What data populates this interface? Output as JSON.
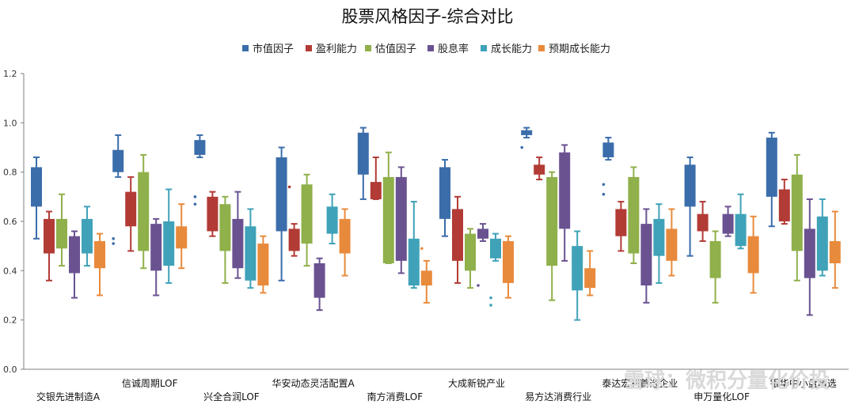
{
  "chart_data": {
    "type": "boxplot",
    "title": "股票风格因子-综合对比",
    "ylim": [
      0.0,
      1.2
    ],
    "yticks": [
      "0.0",
      "0.2",
      "0.4",
      "0.6",
      "0.8",
      "1.0",
      "1.2"
    ],
    "legend_position": "top-center",
    "grid": false,
    "categories": [
      "交银先进制造A",
      "信诚周期LOF",
      "兴全合润LOF",
      "华安动态灵活配置A",
      "南方消费LOF",
      "大成新锐产业",
      "易方达消费行业",
      "泰达宏利首选企业",
      "申万量化LOF",
      "银华中小盘精选"
    ],
    "series": [
      {
        "name": "市值因子",
        "color": "#3b6dab",
        "stats": [
          {
            "min": 0.53,
            "q1": 0.66,
            "q3": 0.82,
            "max": 0.86,
            "outliers": []
          },
          {
            "min": 0.78,
            "q1": 0.8,
            "q3": 0.89,
            "max": 0.95,
            "outliers": [
              0.51,
              0.53
            ]
          },
          {
            "min": 0.86,
            "q1": 0.87,
            "q3": 0.93,
            "max": 0.95,
            "outliers": [
              0.67,
              0.7
            ]
          },
          {
            "min": 0.36,
            "q1": 0.56,
            "q3": 0.86,
            "max": 0.9,
            "outliers": []
          },
          {
            "min": 0.69,
            "q1": 0.79,
            "q3": 0.96,
            "max": 0.98,
            "outliers": []
          },
          {
            "min": 0.54,
            "q1": 0.61,
            "q3": 0.82,
            "max": 0.85,
            "outliers": []
          },
          {
            "min": 0.94,
            "q1": 0.95,
            "q3": 0.97,
            "max": 0.98,
            "outliers": [
              0.9
            ]
          },
          {
            "min": 0.85,
            "q1": 0.86,
            "q3": 0.92,
            "max": 0.94,
            "outliers": [
              0.71,
              0.75
            ]
          },
          {
            "min": 0.46,
            "q1": 0.66,
            "q3": 0.83,
            "max": 0.86,
            "outliers": []
          },
          {
            "min": 0.58,
            "q1": 0.7,
            "q3": 0.94,
            "max": 0.96,
            "outliers": []
          }
        ]
      },
      {
        "name": "盈利能力",
        "color": "#b23b35",
        "stats": [
          {
            "min": 0.36,
            "q1": 0.47,
            "q3": 0.61,
            "max": 0.64,
            "outliers": []
          },
          {
            "min": 0.48,
            "q1": 0.58,
            "q3": 0.72,
            "max": 0.78,
            "outliers": []
          },
          {
            "min": 0.54,
            "q1": 0.56,
            "q3": 0.7,
            "max": 0.72,
            "outliers": []
          },
          {
            "min": 0.46,
            "q1": 0.48,
            "q3": 0.57,
            "max": 0.59,
            "outliers": [
              0.74
            ]
          },
          {
            "min": 0.69,
            "q1": 0.69,
            "q3": 0.76,
            "max": 0.86,
            "outliers": []
          },
          {
            "min": 0.35,
            "q1": 0.44,
            "q3": 0.65,
            "max": 0.7,
            "outliers": []
          },
          {
            "min": 0.77,
            "q1": 0.79,
            "q3": 0.83,
            "max": 0.86,
            "outliers": []
          },
          {
            "min": 0.48,
            "q1": 0.54,
            "q3": 0.65,
            "max": 0.68,
            "outliers": []
          },
          {
            "min": 0.52,
            "q1": 0.56,
            "q3": 0.63,
            "max": 0.68,
            "outliers": []
          },
          {
            "min": 0.59,
            "q1": 0.6,
            "q3": 0.73,
            "max": 0.77,
            "outliers": []
          }
        ]
      },
      {
        "name": "估值因子",
        "color": "#8fb04a",
        "stats": [
          {
            "min": 0.42,
            "q1": 0.49,
            "q3": 0.61,
            "max": 0.71,
            "outliers": []
          },
          {
            "min": 0.41,
            "q1": 0.48,
            "q3": 0.8,
            "max": 0.87,
            "outliers": []
          },
          {
            "min": 0.35,
            "q1": 0.48,
            "q3": 0.67,
            "max": 0.7,
            "outliers": []
          },
          {
            "min": 0.42,
            "q1": 0.51,
            "q3": 0.75,
            "max": 0.79,
            "outliers": []
          },
          {
            "min": 0.43,
            "q1": 0.43,
            "q3": 0.78,
            "max": 0.88,
            "outliers": []
          },
          {
            "min": 0.33,
            "q1": 0.4,
            "q3": 0.55,
            "max": 0.57,
            "outliers": []
          },
          {
            "min": 0.28,
            "q1": 0.42,
            "q3": 0.78,
            "max": 0.8,
            "outliers": []
          },
          {
            "min": 0.43,
            "q1": 0.47,
            "q3": 0.78,
            "max": 0.82,
            "outliers": []
          },
          {
            "min": 0.27,
            "q1": 0.37,
            "q3": 0.52,
            "max": 0.56,
            "outliers": []
          },
          {
            "min": 0.36,
            "q1": 0.48,
            "q3": 0.79,
            "max": 0.87,
            "outliers": []
          }
        ]
      },
      {
        "name": "股息率",
        "color": "#6a5291",
        "stats": [
          {
            "min": 0.29,
            "q1": 0.39,
            "q3": 0.54,
            "max": 0.56,
            "outliers": []
          },
          {
            "min": 0.3,
            "q1": 0.4,
            "q3": 0.59,
            "max": 0.61,
            "outliers": []
          },
          {
            "min": 0.37,
            "q1": 0.41,
            "q3": 0.61,
            "max": 0.72,
            "outliers": []
          },
          {
            "min": 0.24,
            "q1": 0.29,
            "q3": 0.43,
            "max": 0.45,
            "outliers": []
          },
          {
            "min": 0.39,
            "q1": 0.44,
            "q3": 0.78,
            "max": 0.82,
            "outliers": []
          },
          {
            "min": 0.52,
            "q1": 0.53,
            "q3": 0.57,
            "max": 0.59,
            "outliers": [
              0.34
            ]
          },
          {
            "min": 0.44,
            "q1": 0.57,
            "q3": 0.88,
            "max": 0.91,
            "outliers": []
          },
          {
            "min": 0.27,
            "q1": 0.34,
            "q3": 0.59,
            "max": 0.65,
            "outliers": []
          },
          {
            "min": 0.54,
            "q1": 0.55,
            "q3": 0.63,
            "max": 0.66,
            "outliers": []
          },
          {
            "min": 0.22,
            "q1": 0.37,
            "q3": 0.57,
            "max": 0.69,
            "outliers": []
          }
        ]
      },
      {
        "name": "成长能力",
        "color": "#3fa2b8",
        "stats": [
          {
            "min": 0.42,
            "q1": 0.47,
            "q3": 0.61,
            "max": 0.66,
            "outliers": []
          },
          {
            "min": 0.35,
            "q1": 0.42,
            "q3": 0.6,
            "max": 0.73,
            "outliers": []
          },
          {
            "min": 0.33,
            "q1": 0.36,
            "q3": 0.58,
            "max": 0.65,
            "outliers": []
          },
          {
            "min": 0.51,
            "q1": 0.55,
            "q3": 0.66,
            "max": 0.71,
            "outliers": []
          },
          {
            "min": 0.33,
            "q1": 0.34,
            "q3": 0.53,
            "max": 0.68,
            "outliers": []
          },
          {
            "min": 0.44,
            "q1": 0.45,
            "q3": 0.53,
            "max": 0.55,
            "outliers": [
              0.26,
              0.29
            ]
          },
          {
            "min": 0.2,
            "q1": 0.32,
            "q3": 0.5,
            "max": 0.56,
            "outliers": []
          },
          {
            "min": 0.35,
            "q1": 0.46,
            "q3": 0.61,
            "max": 0.67,
            "outliers": []
          },
          {
            "min": 0.49,
            "q1": 0.5,
            "q3": 0.63,
            "max": 0.71,
            "outliers": []
          },
          {
            "min": 0.38,
            "q1": 0.4,
            "q3": 0.62,
            "max": 0.69,
            "outliers": []
          }
        ]
      },
      {
        "name": "预期成长能力",
        "color": "#e88a3c",
        "stats": [
          {
            "min": 0.3,
            "q1": 0.41,
            "q3": 0.52,
            "max": 0.55,
            "outliers": []
          },
          {
            "min": 0.41,
            "q1": 0.49,
            "q3": 0.58,
            "max": 0.67,
            "outliers": []
          },
          {
            "min": 0.31,
            "q1": 0.34,
            "q3": 0.51,
            "max": 0.54,
            "outliers": []
          },
          {
            "min": 0.38,
            "q1": 0.47,
            "q3": 0.61,
            "max": 0.65,
            "outliers": []
          },
          {
            "min": 0.27,
            "q1": 0.34,
            "q3": 0.4,
            "max": 0.44,
            "outliers": [
              0.49
            ]
          },
          {
            "min": 0.29,
            "q1": 0.35,
            "q3": 0.52,
            "max": 0.54,
            "outliers": []
          },
          {
            "min": 0.3,
            "q1": 0.33,
            "q3": 0.41,
            "max": 0.48,
            "outliers": []
          },
          {
            "min": 0.38,
            "q1": 0.44,
            "q3": 0.57,
            "max": 0.65,
            "outliers": []
          },
          {
            "min": 0.31,
            "q1": 0.39,
            "q3": 0.54,
            "max": 0.62,
            "outliers": []
          },
          {
            "min": 0.33,
            "q1": 0.43,
            "q3": 0.52,
            "max": 0.64,
            "outliers": []
          }
        ]
      }
    ]
  },
  "watermark": "雪球：微积分量化价投"
}
